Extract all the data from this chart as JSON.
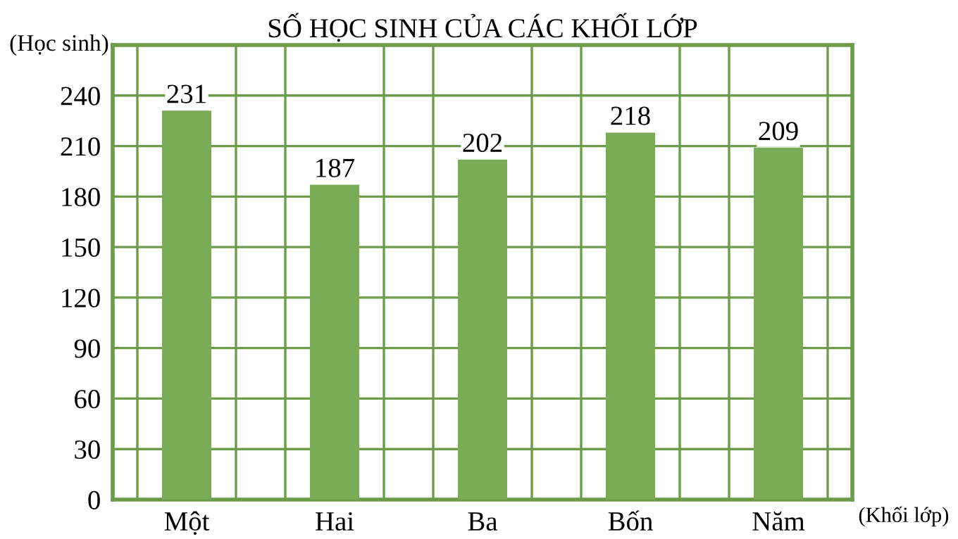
{
  "chart_data": {
    "type": "bar",
    "title": "SỐ HỌC SINH CỦA CÁC KHỐI LỚP",
    "ylabel": "(Học sinh)",
    "xlabel": "(Khối lớp)",
    "categories": [
      "Một",
      "Hai",
      "Ba",
      "Bốn",
      "Năm"
    ],
    "values": [
      231,
      187,
      202,
      218,
      209
    ],
    "color": "#7aab55",
    "ylim": [
      0,
      270
    ],
    "yticks": [
      0,
      30,
      60,
      90,
      120,
      150,
      180,
      210,
      240
    ],
    "grid": true,
    "data_labels": true
  }
}
